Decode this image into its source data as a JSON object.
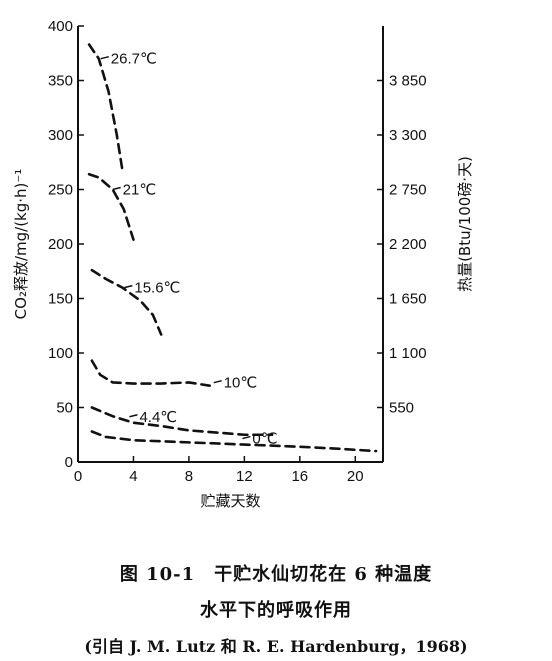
{
  "chart_data": {
    "type": "line",
    "xlabel": "贮藏天数",
    "ylabel": "CO₂释放/mg/(kg·h)⁻¹",
    "y2label": "热量(Btu/100磅·天)",
    "xlim": [
      0,
      22
    ],
    "ylim": [
      0,
      400
    ],
    "x_ticks": [
      0,
      4,
      8,
      12,
      16,
      20
    ],
    "y_ticks": [
      0,
      50,
      100,
      150,
      200,
      250,
      300,
      350,
      400
    ],
    "y2_ticks": [
      {
        "value": 550,
        "label": "550"
      },
      {
        "value": 1100,
        "label": "1 100"
      },
      {
        "value": 1650,
        "label": "1 650"
      },
      {
        "value": 2200,
        "label": "2 200"
      },
      {
        "value": 2750,
        "label": "2 750"
      },
      {
        "value": 3300,
        "label": "3 300"
      },
      {
        "value": 3850,
        "label": "3 850"
      }
    ],
    "y2_per_y": 11,
    "grid": false,
    "line_style": "dashed",
    "series": [
      {
        "name": "26.7℃",
        "x": [
          0.8,
          1.5,
          2.2,
          2.8,
          3.2
        ],
        "y": [
          383,
          370,
          340,
          300,
          268
        ]
      },
      {
        "name": "21℃",
        "x": [
          0.8,
          1.5,
          2.5,
          3.3,
          4.0
        ],
        "y": [
          264,
          261,
          250,
          232,
          204
        ]
      },
      {
        "name": "15.6℃",
        "x": [
          1.0,
          2.0,
          3.2,
          4.5,
          5.4,
          6.0
        ],
        "y": [
          176,
          168,
          160,
          148,
          135,
          117
        ]
      },
      {
        "name": "10℃",
        "x": [
          1.0,
          1.6,
          2.5,
          4.0,
          6.0,
          8.0,
          9.5
        ],
        "y": [
          93,
          80,
          73,
          72,
          72,
          73,
          70
        ]
      },
      {
        "name": "4.4℃",
        "x": [
          1.0,
          2.5,
          4.0,
          6.0,
          8.0,
          10.0,
          12.0,
          14.0
        ],
        "y": [
          50,
          42,
          36,
          33,
          29,
          27,
          25,
          25
        ]
      },
      {
        "name": "0℃",
        "x": [
          1.0,
          2.0,
          4.0,
          8.0,
          12.0,
          16.0,
          19.0,
          21.5
        ],
        "y": [
          28,
          23,
          20,
          18,
          16,
          14,
          12,
          10
        ]
      }
    ]
  },
  "caption": {
    "line1": "图 10-1　干贮水仙切花在 6 种温度",
    "line2": "水平下的呼吸作用",
    "line3": "(引自 J. M. Lutz 和 R. E. Hardenburg，1968)"
  }
}
